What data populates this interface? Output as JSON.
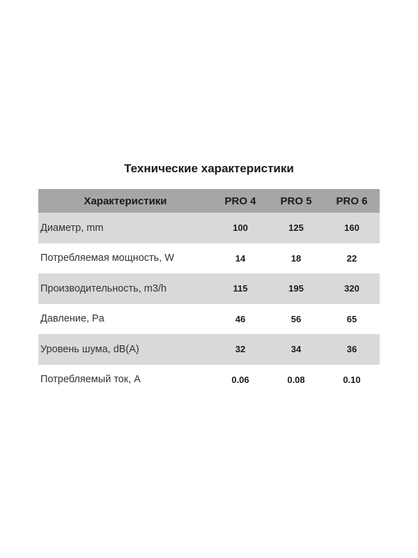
{
  "title": "Технические характеристики",
  "table": {
    "headers": [
      "Характеристики",
      "PRO 4",
      "PRO 5",
      "PRO 6"
    ],
    "rows": [
      {
        "label": "Диаметр, mm",
        "values": [
          "100",
          "125",
          "160"
        ]
      },
      {
        "label": "Потребляемая мощность, W",
        "values": [
          "14",
          "18",
          "22"
        ]
      },
      {
        "label": "Производительность, m3/h",
        "values": [
          "115",
          "195",
          "320"
        ]
      },
      {
        "label": "Давление, Pa",
        "values": [
          "46",
          "56",
          "65"
        ]
      },
      {
        "label": "Уровень шума, dB(A)",
        "values": [
          "32",
          "34",
          "36"
        ]
      },
      {
        "label": "Потребляемый ток, A",
        "values": [
          "0.06",
          "0.08",
          "0.10"
        ]
      }
    ]
  },
  "colors": {
    "header_bg": "#a6a6a6",
    "stripe_bg": "#d9d9d9"
  }
}
